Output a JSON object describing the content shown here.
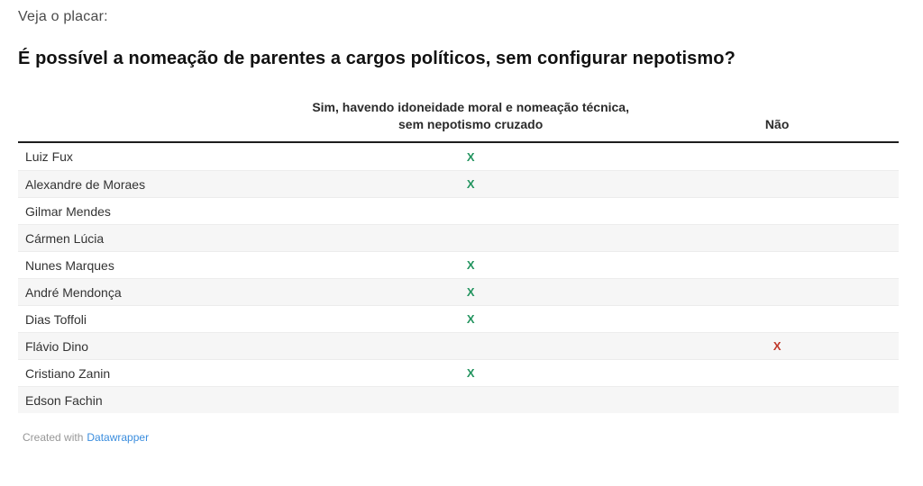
{
  "kicker": "Veja o placar:",
  "title": "É possível a nomeação de parentes a cargos políticos, sem configurar nepotismo?",
  "table": {
    "col_name_header": "",
    "col_sim_header": "Sim, havendo idoneidade moral e nomeação técnica, sem nepotismo cruzado",
    "col_nao_header": "Não",
    "mark": "X",
    "rows": [
      {
        "name": "Luiz Fux",
        "sim": true,
        "nao": false
      },
      {
        "name": "Alexandre de Moraes",
        "sim": true,
        "nao": false
      },
      {
        "name": "Gilmar Mendes",
        "sim": false,
        "nao": false
      },
      {
        "name": "Cármen Lúcia",
        "sim": false,
        "nao": false
      },
      {
        "name": "Nunes Marques",
        "sim": true,
        "nao": false
      },
      {
        "name": "André Mendonça",
        "sim": true,
        "nao": false
      },
      {
        "name": "Dias Toffoli",
        "sim": true,
        "nao": false
      },
      {
        "name": "Flávio Dino",
        "sim": false,
        "nao": true
      },
      {
        "name": "Cristiano Zanin",
        "sim": true,
        "nao": false
      },
      {
        "name": "Edson Fachin",
        "sim": false,
        "nao": false
      }
    ]
  },
  "footer": {
    "prefix": "Created with",
    "link_label": "Datawrapper"
  },
  "colors": {
    "yes_mark": "#23945f",
    "no_mark": "#c0392b",
    "link": "#3a8dde",
    "row_alt": "#f6f6f6",
    "header_rule": "#1d1d1d"
  }
}
